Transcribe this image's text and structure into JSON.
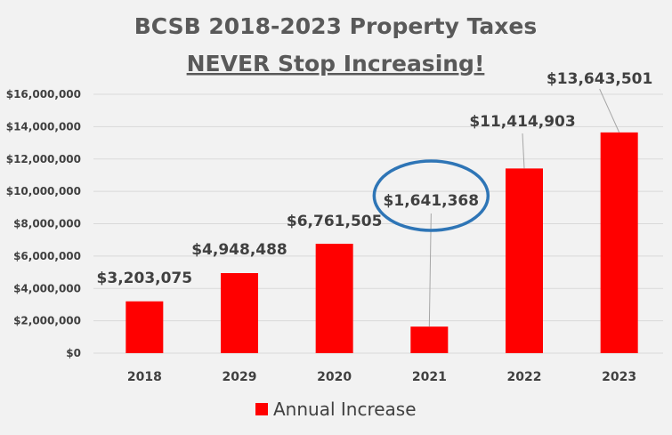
{
  "chart_data": {
    "type": "bar",
    "title": "BCSB 2018-2023 Property Taxes",
    "subtitle": "NEVER Stop Increasing!",
    "xlabel": "",
    "ylabel": "",
    "categories": [
      "2018",
      "2029",
      "2020",
      "2021",
      "2022",
      "2023"
    ],
    "series": [
      {
        "name": "Annual Increase",
        "values": [
          3203075,
          4948488,
          6761505,
          1641368,
          11414903,
          13643501
        ],
        "labels": [
          "$3,203,075",
          "$4,948,488",
          "$6,761,505",
          "$1,641,368",
          "$11,414,903",
          "$13,643,501"
        ]
      }
    ],
    "ylim": [
      0,
      16000000
    ],
    "yticks": [
      0,
      2000000,
      4000000,
      6000000,
      8000000,
      10000000,
      12000000,
      14000000,
      16000000
    ],
    "ytick_labels": [
      "$0",
      "$2,000,000",
      "$4,000,000",
      "$6,000,000",
      "$8,000,000",
      "$10,000,000",
      "$12,000,000",
      "$14,000,000",
      "$16,000,000"
    ],
    "grid": true,
    "legend": "bottom",
    "highlighted_category": "2021",
    "colors": {
      "bar": "#ff0000",
      "highlight_ring": "#2e75b6",
      "grid": "#d9d9d9",
      "text": "#404040",
      "title": "#595959",
      "background": "#f2f2f2"
    }
  }
}
